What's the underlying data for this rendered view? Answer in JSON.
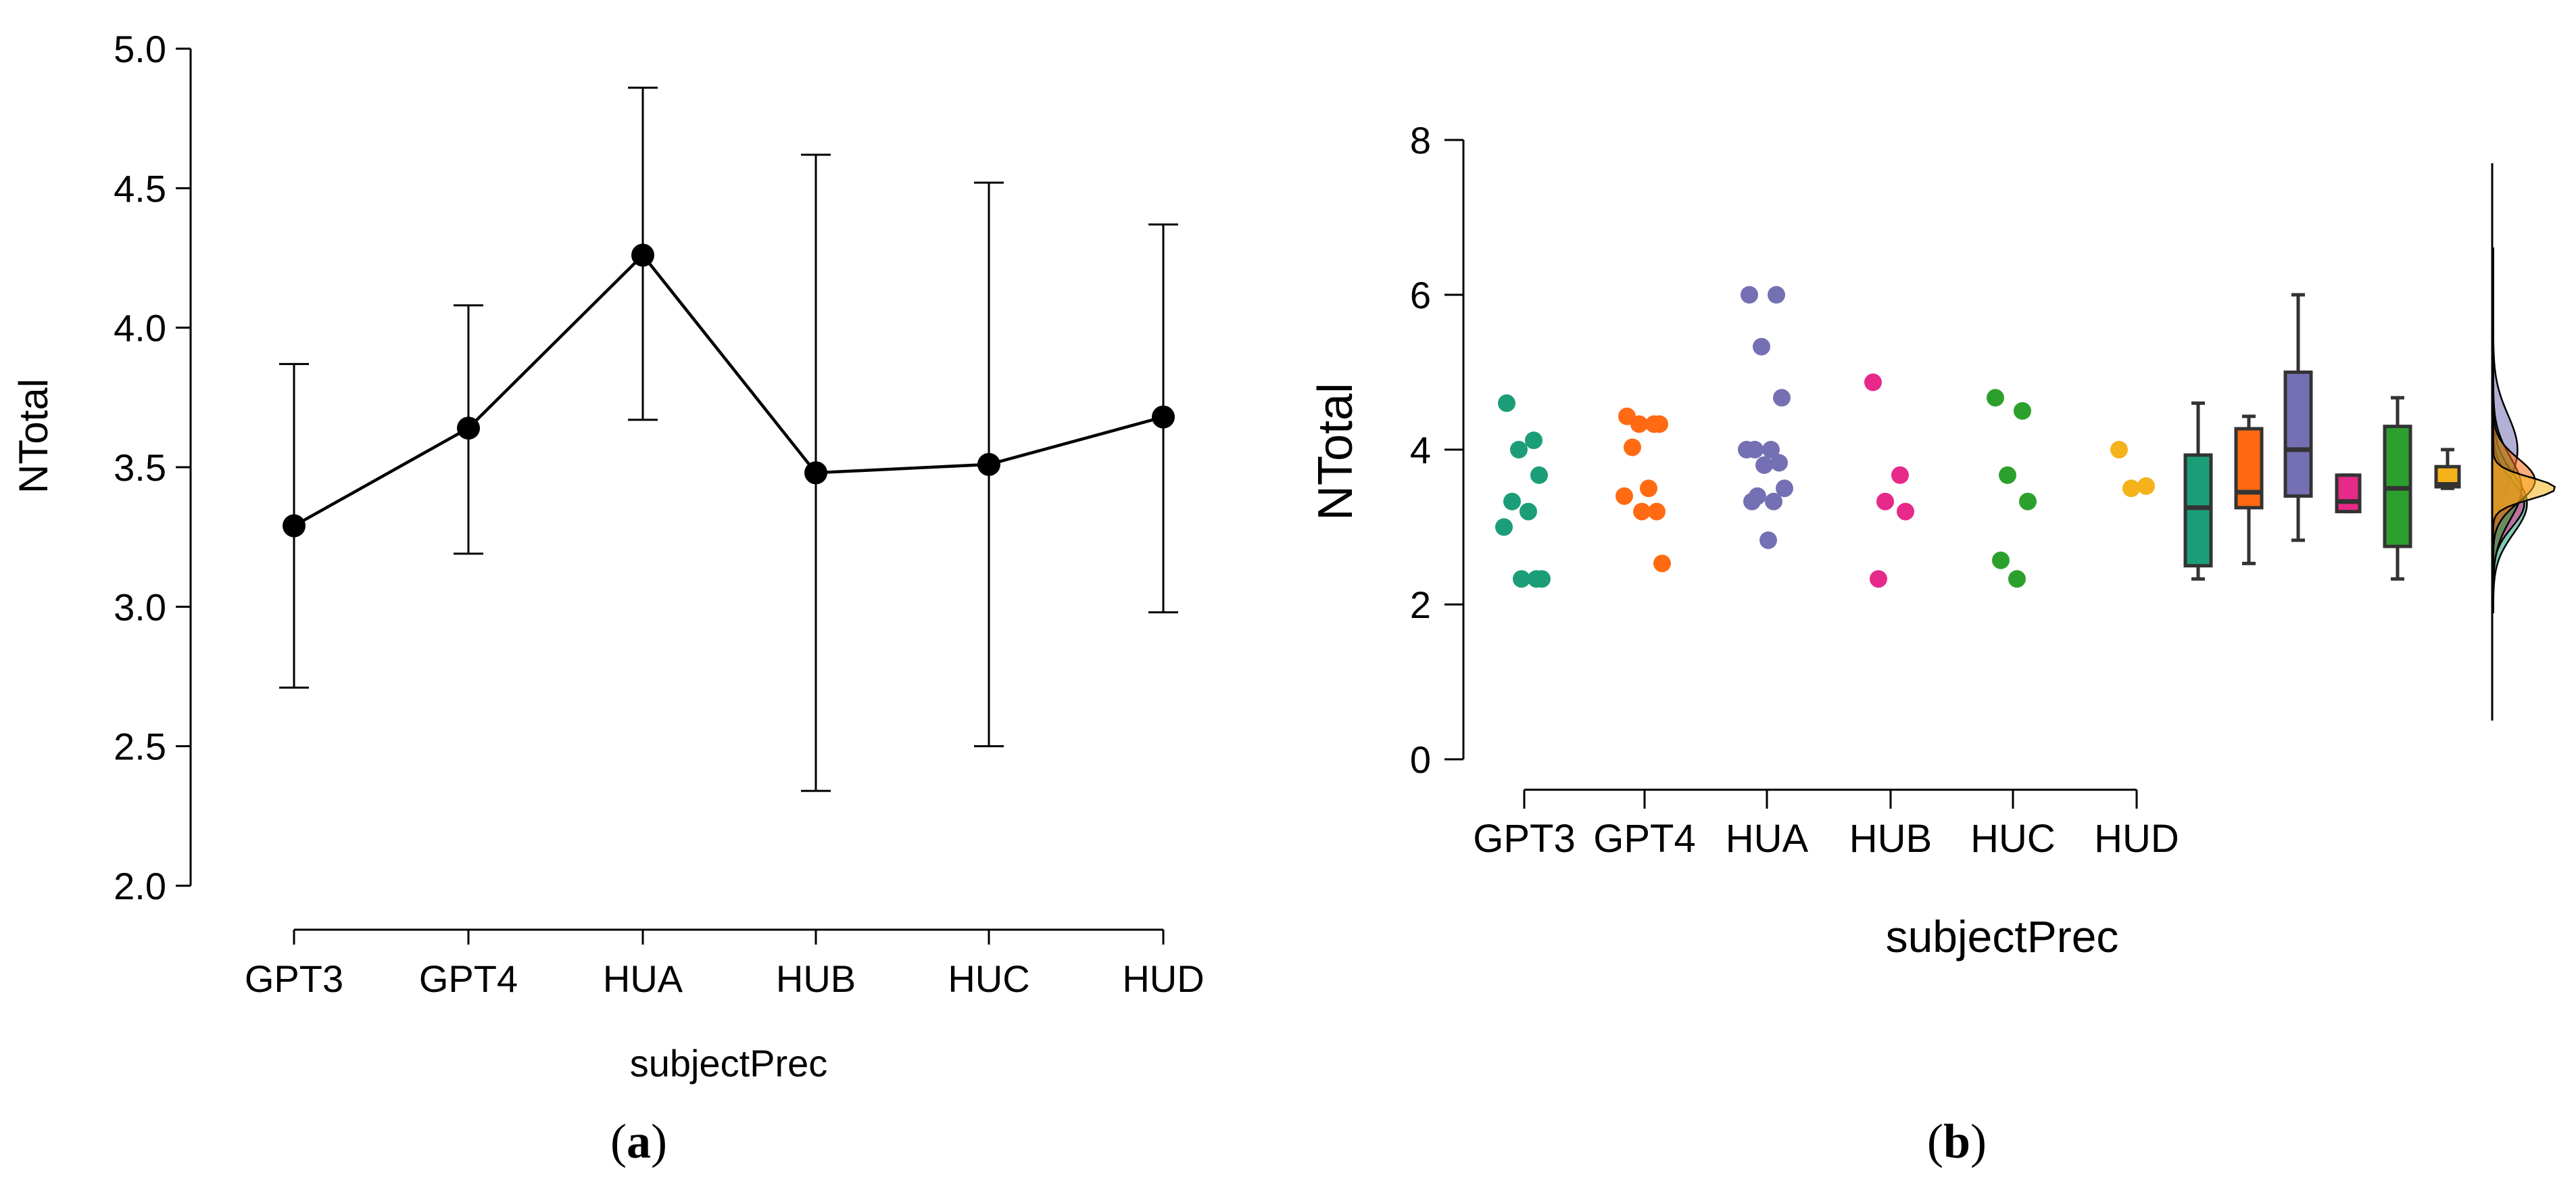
{
  "chart_data": [
    {
      "panel": "a",
      "type": "line",
      "caption_letter": "a",
      "xlabel": "subjectPrec",
      "ylabel": "NTotal",
      "categories": [
        "GPT3",
        "GPT4",
        "HUA",
        "HUB",
        "HUC",
        "HUD"
      ],
      "y_ticks": [
        "2.0",
        "2.5",
        "3.0",
        "3.5",
        "4.0",
        "4.5",
        "5.0"
      ],
      "ylim": [
        2.0,
        5.0
      ],
      "mean": [
        3.29,
        3.64,
        4.26,
        3.48,
        3.51,
        3.68
      ],
      "ci_lower": [
        2.71,
        3.19,
        3.67,
        2.34,
        2.5,
        2.98
      ],
      "ci_upper": [
        3.87,
        4.08,
        4.86,
        4.62,
        4.52,
        4.37
      ]
    },
    {
      "panel": "b",
      "type": "raincloud",
      "caption_letter": "b",
      "xlabel": "subjectPrec",
      "ylabel": "NTotal",
      "categories": [
        "GPT3",
        "GPT4",
        "HUA",
        "HUB",
        "HUC",
        "HUD"
      ],
      "y_ticks": [
        "0",
        "2",
        "4",
        "6",
        "8"
      ],
      "ylim": [
        0,
        8
      ],
      "colors": [
        "#1b9e77",
        "#ff6a13",
        "#7570b3",
        "#e7298a",
        "#2ca02c",
        "#f5b21b"
      ],
      "points": [
        [
          4.6,
          4.12,
          4.0,
          3.67,
          3.33,
          3.2,
          3.0,
          2.33,
          2.33,
          2.33
        ],
        [
          4.43,
          4.33,
          4.33,
          4.33,
          4.03,
          3.5,
          3.4,
          3.2,
          3.2,
          2.53
        ],
        [
          6.0,
          6.0,
          5.33,
          4.67,
          4.0,
          4.0,
          4.0,
          3.83,
          3.8,
          3.5,
          3.4,
          3.33,
          3.33,
          2.83
        ],
        [
          4.87,
          3.67,
          3.33,
          3.2,
          2.33
        ],
        [
          4.67,
          4.5,
          3.67,
          3.33,
          2.57,
          2.33
        ],
        [
          4.0,
          3.53,
          3.5
        ]
      ],
      "boxes": [
        {
          "min": 2.33,
          "q1": 2.5,
          "median": 3.25,
          "q3": 3.93,
          "max": 4.6
        },
        {
          "min": 2.53,
          "q1": 3.25,
          "median": 3.45,
          "q3": 4.27,
          "max": 4.43
        },
        {
          "min": 2.83,
          "q1": 3.4,
          "median": 4.0,
          "q3": 5.0,
          "max": 6.0
        },
        {
          "min": 3.2,
          "q1": 3.2,
          "median": 3.33,
          "q3": 3.67,
          "max": 3.67
        },
        {
          "min": 2.33,
          "q1": 2.75,
          "median": 3.5,
          "q3": 4.3,
          "max": 4.67
        },
        {
          "min": 3.5,
          "q1": 3.52,
          "median": 3.55,
          "q3": 3.78,
          "max": 4.0
        }
      ],
      "density_peaks": [
        3.3,
        3.6,
        4.0,
        3.3,
        3.5,
        3.5
      ]
    }
  ]
}
